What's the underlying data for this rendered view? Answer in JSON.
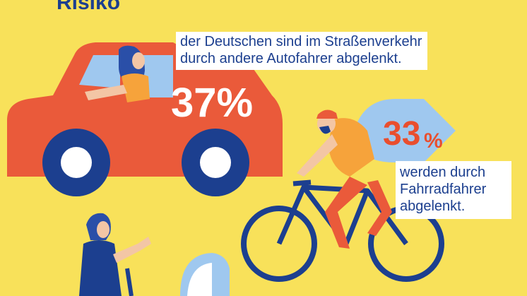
{
  "title": "Risiko",
  "car_stat": {
    "percent": "37%",
    "text_line1": "der Deutschen sind im Straßenverkehr",
    "text_line2": "durch andere Autofahrer abgelenkt."
  },
  "bike_stat": {
    "percent_number": "33",
    "percent_sign": "%",
    "text_line1": "werden durch",
    "text_line2": "Fahrradfahrer",
    "text_line3": "abgelenkt."
  },
  "colors": {
    "background": "#f8e15a",
    "navy": "#1c3f8f",
    "car_red": "#ea5a3a",
    "light_blue": "#9fc8ef",
    "accent_orange": "#e94e2e"
  }
}
